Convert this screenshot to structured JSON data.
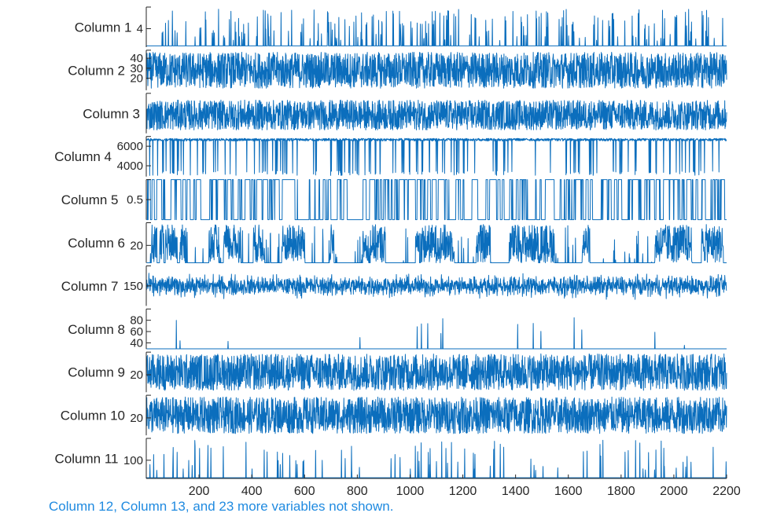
{
  "chart_data": {
    "type": "line",
    "layout": "stacked",
    "line_color": "#0b6ebd",
    "axis_color": "#262626",
    "note_color": "#1f8ae0",
    "xlim": [
      0,
      2200
    ],
    "x_ticks": [
      200,
      400,
      600,
      800,
      1000,
      1200,
      1400,
      1600,
      1800,
      2000,
      2200
    ],
    "x_tick_labels": [
      "200",
      "400",
      "600",
      "800",
      "1000",
      "1200",
      "1400",
      "1600",
      "1800",
      "2000",
      "2200"
    ],
    "n_points": 2200,
    "panels": [
      {
        "name": "Column 1",
        "ylim": [
          1,
          7.5
        ],
        "yticks": [
          4
        ],
        "ytick_labels": [
          "4"
        ],
        "pattern": "spiky",
        "base": 1.2,
        "spike_low": 2,
        "spike_high": 7.2,
        "spike_rate": 0.09
      },
      {
        "name": "Column 2",
        "ylim": [
          8,
          48
        ],
        "yticks": [
          20,
          30,
          40
        ],
        "ytick_labels": [
          "20",
          "30",
          "40"
        ],
        "pattern": "dense",
        "low": 10,
        "high": 46
      },
      {
        "name": "Column 3",
        "ylim": [
          0,
          48
        ],
        "yticks": [],
        "ytick_labels": [],
        "pattern": "dense",
        "low": 4,
        "high": 40
      },
      {
        "name": "Column 4",
        "ylim": [
          2900,
          7000
        ],
        "yticks": [
          4000,
          6000
        ],
        "ytick_labels": [
          "4000",
          "6000"
        ],
        "pattern": "drops",
        "top": 6800,
        "drop_low": 3000,
        "drop_rate": 0.07
      },
      {
        "name": "Column 5",
        "ylim": [
          0,
          1
        ],
        "yticks": [
          0.5
        ],
        "ytick_labels": [
          "0.5"
        ],
        "pattern": "binary",
        "switch_rate": 0.11
      },
      {
        "name": "Column 6",
        "ylim": [
          0,
          46
        ],
        "yticks": [
          20
        ],
        "ytick_labels": [
          "20"
        ],
        "pattern": "bursty",
        "low": 0,
        "high": 44
      },
      {
        "name": "Column 7",
        "ylim": [
          70,
          230
        ],
        "yticks": [
          150
        ],
        "ytick_labels": [
          "150"
        ],
        "pattern": "noise",
        "mean": 150,
        "amp": 38
      },
      {
        "name": "Column 8",
        "ylim": [
          29,
          100
        ],
        "yticks": [
          40,
          60,
          80
        ],
        "ytick_labels": [
          "40",
          "60",
          "80"
        ],
        "pattern": "spiky",
        "base": 29.5,
        "spike_low": 35,
        "spike_high": 92,
        "spike_rate": 0.012
      },
      {
        "name": "Column 9",
        "ylim": [
          0,
          46
        ],
        "yticks": [
          20
        ],
        "ytick_labels": [
          "20"
        ],
        "pattern": "dense",
        "low": 2,
        "high": 44
      },
      {
        "name": "Column 10",
        "ylim": [
          0,
          46
        ],
        "yticks": [
          20
        ],
        "ytick_labels": [
          "20"
        ],
        "pattern": "dense",
        "low": 2,
        "high": 44
      },
      {
        "name": "Column 11",
        "ylim": [
          0,
          220
        ],
        "yticks": [
          100
        ],
        "ytick_labels": [
          "100"
        ],
        "pattern": "spiky",
        "base": 4,
        "spike_low": 40,
        "spike_high": 210,
        "spike_rate": 0.035
      }
    ],
    "note": "Column 12, Column 13, and 23 more variables not shown."
  }
}
